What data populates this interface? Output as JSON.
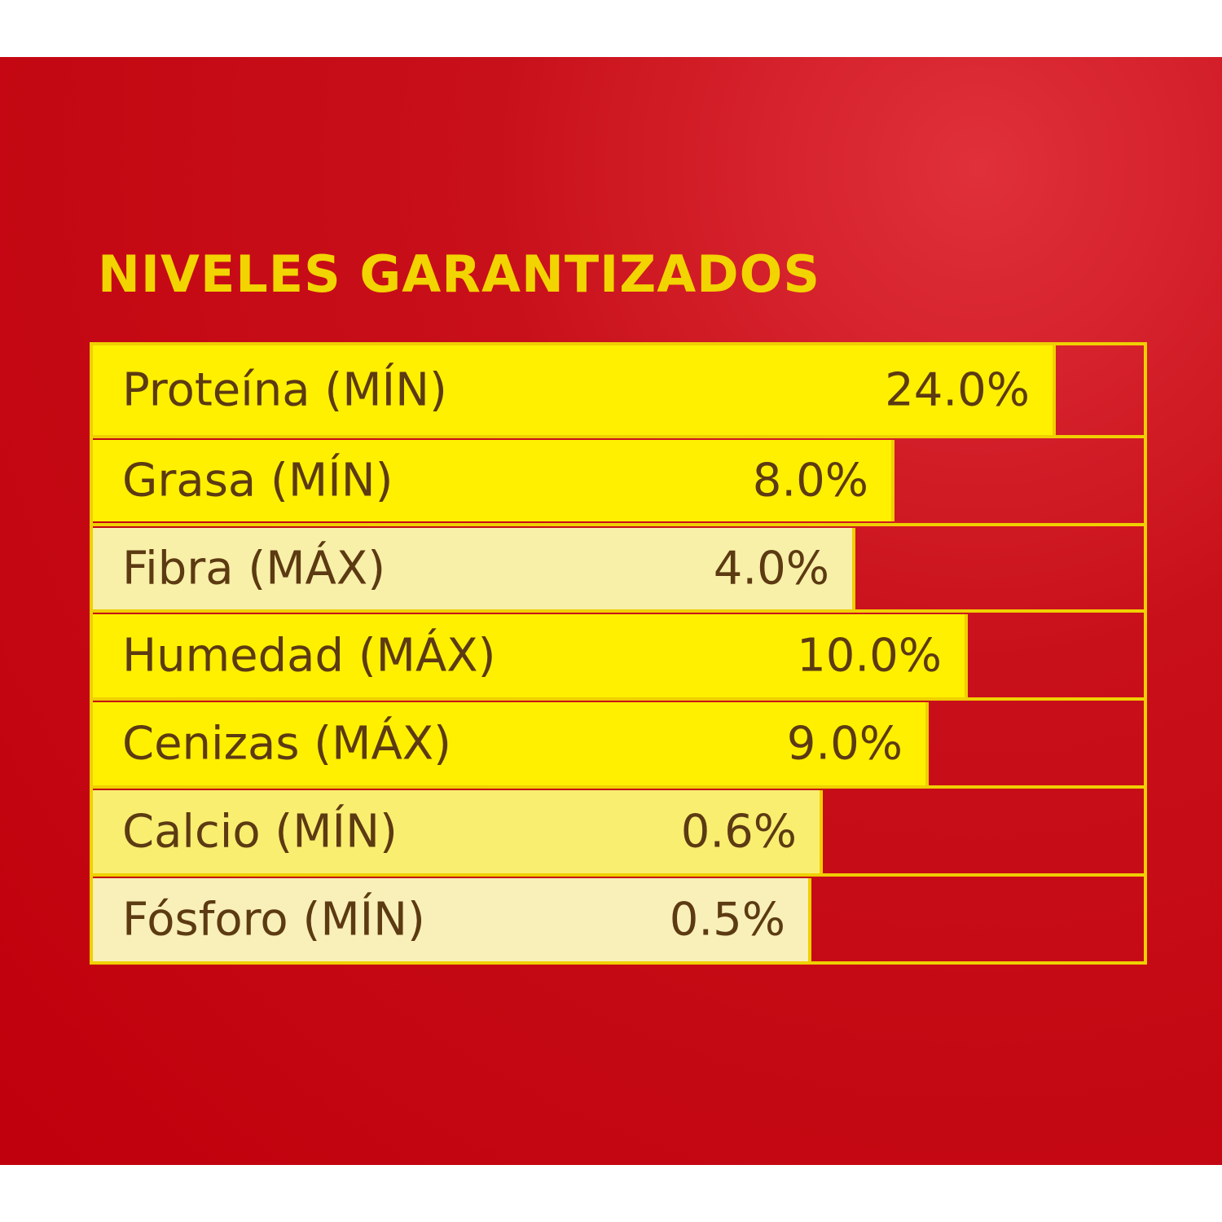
{
  "title": "NIVELES GARANTIZADOS",
  "table": {
    "rows": [
      [
        "Proteína (MÍN)",
        "24.0%"
      ],
      [
        "Grasa (MÍN)",
        "8.0%"
      ],
      [
        "Fibra (MÁX)",
        "4.0%"
      ],
      [
        "Humedad (MÁX)",
        "10.0%"
      ],
      [
        "Cenizas (MÁX)",
        "9.0%"
      ],
      [
        "Calcio (MÍN)",
        "0.6%"
      ],
      [
        "Fósforo (MÍN)",
        "0.5%"
      ]
    ]
  }
}
